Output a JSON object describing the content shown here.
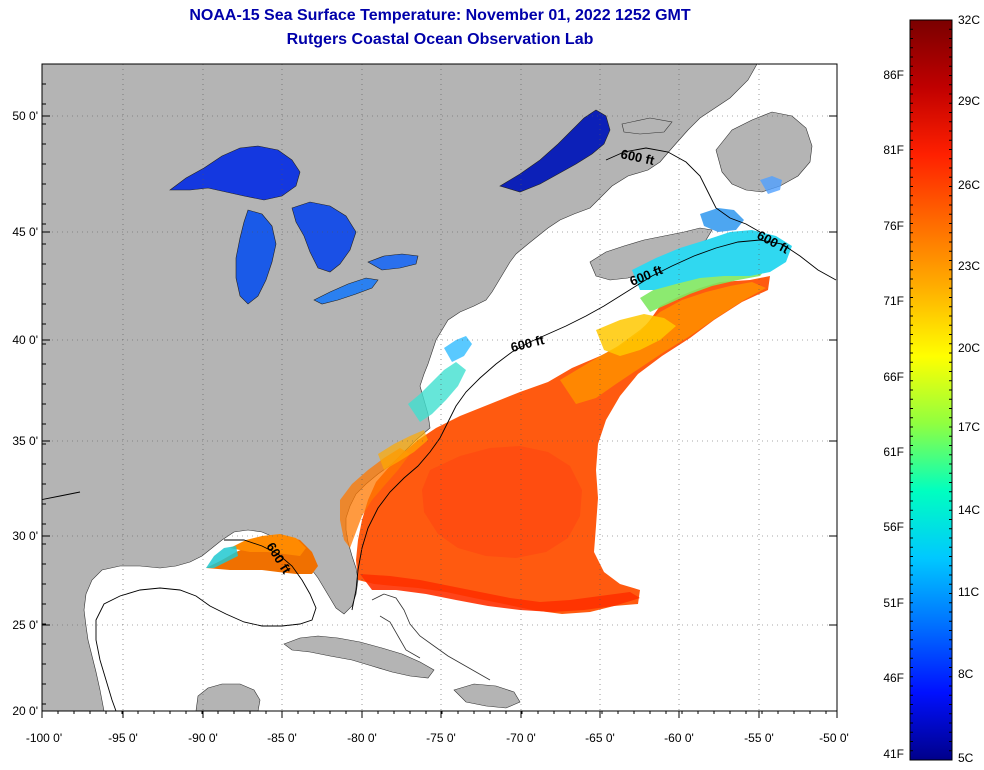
{
  "header": {
    "title": "NOAA-15 Sea Surface Temperature:  November 01, 2022 1252 GMT",
    "subtitle": "Rutgers Coastal Ocean Observation Lab"
  },
  "axes": {
    "lat_labels": [
      "50 0'",
      "45 0'",
      "40 0'",
      "35 0'",
      "30 0'",
      "25 0'",
      "20 0'"
    ],
    "lon_labels": [
      "-100 0'",
      "-95 0'",
      "-90 0'",
      "-85 0'",
      "-80 0'",
      "-75 0'",
      "-70 0'",
      "-65 0'",
      "-60 0'",
      "-55 0'",
      "-50 0'"
    ]
  },
  "contours": {
    "label": "600 ft"
  },
  "colorbar": {
    "fahrenheit_labels": [
      "86F",
      "81F",
      "76F",
      "71F",
      "66F",
      "61F",
      "56F",
      "51F",
      "46F",
      "41F"
    ],
    "celsius_labels": [
      "32C",
      "29C",
      "26C",
      "23C",
      "20C",
      "17C",
      "14C",
      "11C",
      "8C",
      "5C"
    ],
    "stops": [
      "#7a0000",
      "#c00000",
      "#ff2000",
      "#ff6a00",
      "#ffb000",
      "#ffff00",
      "#90ff40",
      "#00ffc0",
      "#00c8ff",
      "#0070ff",
      "#0010ff",
      "#00008a"
    ]
  },
  "colors": {
    "land": "#b4b4b4",
    "water_nodata": "#ffffff",
    "title": "#0000aa"
  }
}
